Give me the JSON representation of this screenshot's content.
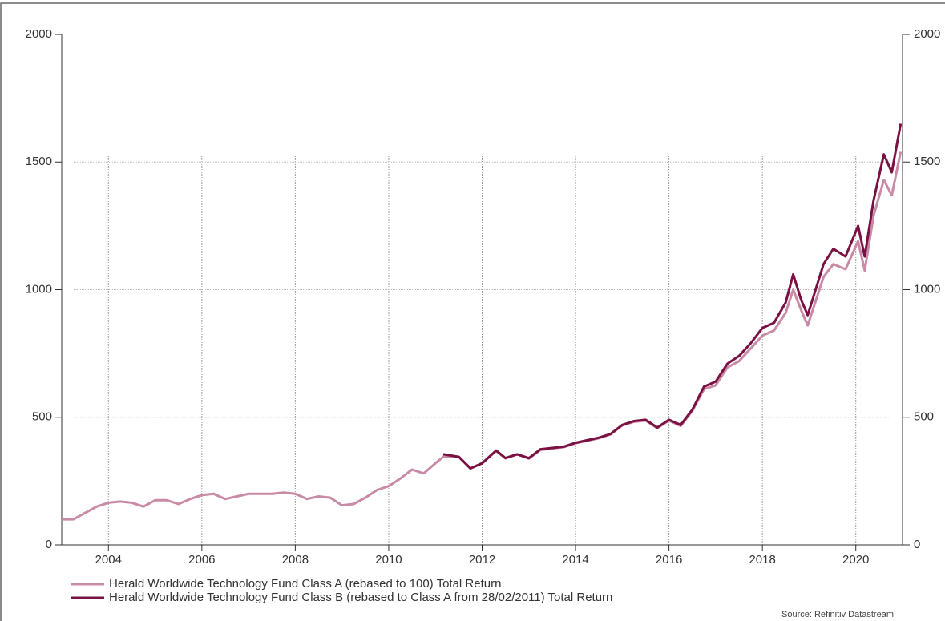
{
  "chart_data": {
    "type": "line",
    "xlim": [
      2003,
      2021
    ],
    "xticks": [
      2004,
      2006,
      2008,
      2010,
      2012,
      2014,
      2016,
      2018,
      2020
    ],
    "ylim": [
      0,
      2000
    ],
    "yticks": [
      0,
      500,
      1000,
      1500,
      2000
    ],
    "y2lim": [
      0,
      2000
    ],
    "y2ticks": [
      0,
      500,
      1000,
      1500,
      2000
    ],
    "grid": true,
    "source": "Source: Refinitiv Datastream",
    "x": [
      2003.0,
      2003.25,
      2003.5,
      2003.75,
      2004.0,
      2004.25,
      2004.5,
      2004.75,
      2005.0,
      2005.25,
      2005.5,
      2005.75,
      2006.0,
      2006.25,
      2006.5,
      2006.75,
      2007.0,
      2007.25,
      2007.5,
      2007.75,
      2008.0,
      2008.25,
      2008.5,
      2008.75,
      2009.0,
      2009.25,
      2009.5,
      2009.75,
      2010.0,
      2010.25,
      2010.5,
      2010.75,
      2011.0,
      2011.17,
      2011.5,
      2011.75,
      2012.0,
      2012.3,
      2012.5,
      2012.75,
      2013.0,
      2013.25,
      2013.5,
      2013.75,
      2014.0,
      2014.25,
      2014.5,
      2014.75,
      2015.0,
      2015.25,
      2015.5,
      2015.75,
      2016.0,
      2016.25,
      2016.5,
      2016.75,
      2017.0,
      2017.25,
      2017.5,
      2017.75,
      2018.0,
      2018.25,
      2018.5,
      2018.66,
      2018.83,
      2018.97,
      2019.31,
      2019.52,
      2019.78,
      2020.05,
      2020.19,
      2020.38,
      2020.6,
      2020.77,
      2020.96
    ],
    "series": [
      {
        "name": "Herald Worldwide Technology Fund Class A (rebased to 100) Total Return",
        "color": "#c98aa6",
        "values": [
          100,
          100,
          125,
          150,
          165,
          170,
          165,
          150,
          175,
          175,
          160,
          180,
          195,
          200,
          180,
          190,
          200,
          200,
          200,
          205,
          200,
          180,
          190,
          185,
          155,
          160,
          185,
          215,
          230,
          260,
          295,
          280,
          320,
          345,
          345,
          300,
          320,
          368,
          340,
          355,
          338,
          372,
          378,
          383,
          398,
          408,
          418,
          433,
          468,
          482,
          487,
          457,
          487,
          466,
          525,
          610,
          625,
          695,
          720,
          770,
          820,
          840,
          910,
          1000,
          920,
          860,
          1050,
          1100,
          1080,
          1190,
          1075,
          1290,
          1430,
          1370,
          1540
        ]
      },
      {
        "name": "Herald Worldwide Technology Fund Class B (rebased to Class A from 28/02/2011) Total Return",
        "color": "#7a1142",
        "values": [
          null,
          null,
          null,
          null,
          null,
          null,
          null,
          null,
          null,
          null,
          null,
          null,
          null,
          null,
          null,
          null,
          null,
          null,
          null,
          null,
          null,
          null,
          null,
          null,
          null,
          null,
          null,
          null,
          null,
          null,
          null,
          null,
          null,
          355,
          345,
          300,
          320,
          370,
          340,
          355,
          340,
          375,
          380,
          385,
          400,
          410,
          420,
          435,
          470,
          485,
          490,
          460,
          490,
          470,
          530,
          620,
          640,
          710,
          740,
          790,
          850,
          870,
          950,
          1060,
          960,
          900,
          1100,
          1160,
          1130,
          1250,
          1130,
          1350,
          1530,
          1460,
          1650
        ]
      }
    ]
  }
}
